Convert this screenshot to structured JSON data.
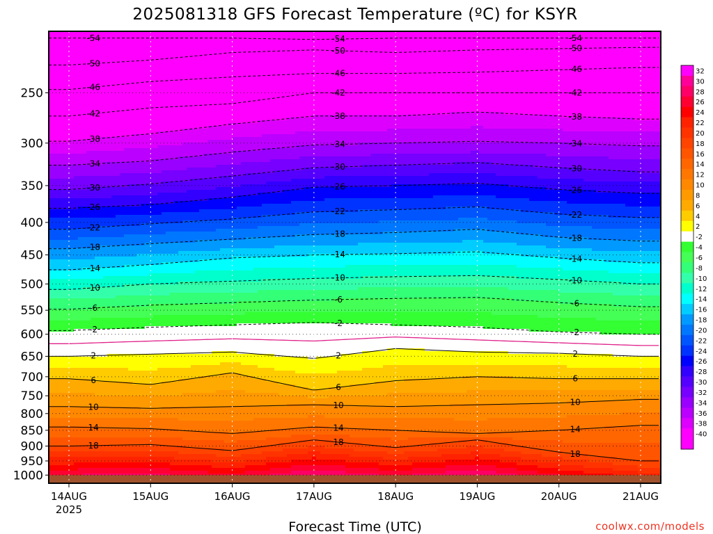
{
  "chart_data": {
    "type": "heatmap",
    "title": "2025081318 GFS Forecast Temperature (ºC) for KSYR",
    "xlabel": "Forecast Time (UTC)",
    "ylabel": "",
    "credit": "coolwx.com/models",
    "x_ticks": [
      "14AUG",
      "15AUG",
      "16AUG",
      "17AUG",
      "18AUG",
      "19AUG",
      "20AUG",
      "21AUG"
    ],
    "x_year": "2025",
    "y_ticks": [
      250,
      300,
      350,
      400,
      450,
      500,
      550,
      600,
      650,
      700,
      750,
      800,
      850,
      900,
      950,
      1000
    ],
    "y_scale": "log",
    "y_range_hpa": [
      200,
      1030
    ],
    "surface_hpa": 1000,
    "colorbar_levels": [
      32,
      30,
      28,
      26,
      24,
      22,
      20,
      18,
      16,
      14,
      12,
      10,
      8,
      6,
      4,
      2,
      -2,
      -4,
      -6,
      -8,
      -10,
      -12,
      -14,
      -16,
      -18,
      -20,
      -22,
      -24,
      -26,
      -28,
      -30,
      -32,
      -34,
      -36,
      -38,
      -40
    ],
    "colorbar_colors": [
      "#ff00ff",
      "#ff0099",
      "#ff0066",
      "#ff0033",
      "#ff0000",
      "#ff2200",
      "#ff3300",
      "#ff4400",
      "#ff5500",
      "#ff6600",
      "#ff7700",
      "#ff8800",
      "#ff9900",
      "#ffaa00",
      "#ffcc00",
      "#ffff00",
      "#ffffff",
      "#33ff33",
      "#44ff55",
      "#33ff77",
      "#33ffaa",
      "#00ffcc",
      "#00ffff",
      "#00ccff",
      "#0099ff",
      "#0077ff",
      "#0055ff",
      "#0033ff",
      "#0000ff",
      "#3300ff",
      "#5500ff",
      "#7700ff",
      "#9900ff",
      "#bb00ff",
      "#dd00ff",
      "#ff00ff"
    ],
    "approx_isotherm_pressure_hpa": [
      {
        "temp": -54,
        "values": [
          205,
          205,
          205,
          206,
          205,
          205,
          205,
          205
        ]
      },
      {
        "temp": -50,
        "values": [
          226,
          222,
          216,
          214,
          216,
          214,
          213,
          212
        ]
      },
      {
        "temp": -46,
        "values": [
          247,
          240,
          236,
          233,
          233,
          232,
          230,
          228
        ]
      },
      {
        "temp": -42,
        "values": [
          272,
          264,
          260,
          250,
          250,
          250,
          250,
          250
        ]
      },
      {
        "temp": -38,
        "values": [
          298,
          290,
          280,
          272,
          272,
          268,
          272,
          275
        ]
      },
      {
        "temp": -34,
        "values": [
          325,
          320,
          310,
          302,
          300,
          298,
          300,
          303
        ]
      },
      {
        "temp": -30,
        "values": [
          355,
          348,
          338,
          328,
          325,
          322,
          328,
          333
        ]
      },
      {
        "temp": -26,
        "values": [
          380,
          375,
          365,
          352,
          350,
          347,
          355,
          360
        ]
      },
      {
        "temp": -22,
        "values": [
          410,
          402,
          395,
          385,
          382,
          378,
          388,
          393
        ]
      },
      {
        "temp": -18,
        "values": [
          440,
          432,
          425,
          418,
          415,
          410,
          422,
          428
        ]
      },
      {
        "temp": -14,
        "values": [
          475,
          466,
          455,
          450,
          448,
          445,
          455,
          463
        ]
      },
      {
        "temp": -10,
        "values": [
          510,
          500,
          495,
          490,
          487,
          485,
          492,
          500
        ]
      },
      {
        "temp": -6,
        "values": [
          548,
          540,
          535,
          530,
          527,
          525,
          535,
          543
        ]
      },
      {
        "temp": -2,
        "values": [
          592,
          585,
          580,
          575,
          580,
          585,
          595,
          600
        ]
      },
      {
        "temp": 2,
        "values": [
          650,
          645,
          640,
          655,
          632,
          640,
          643,
          650
        ]
      },
      {
        "temp": 6,
        "values": [
          705,
          720,
          690,
          735,
          710,
          700,
          705,
          705
        ]
      },
      {
        "temp": 10,
        "values": [
          780,
          785,
          780,
          775,
          780,
          775,
          770,
          760
        ]
      },
      {
        "temp": 14,
        "values": [
          840,
          845,
          860,
          840,
          850,
          860,
          850,
          835
        ]
      },
      {
        "temp": 18,
        "values": [
          900,
          895,
          915,
          880,
          905,
          880,
          920,
          950
        ]
      }
    ]
  }
}
